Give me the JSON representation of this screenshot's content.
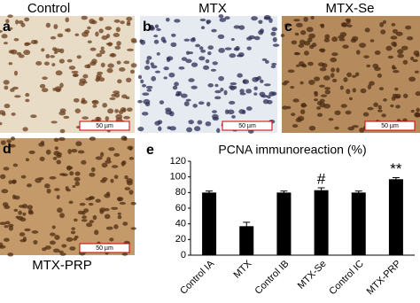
{
  "panels": [
    {
      "letter": "a",
      "title": "Control",
      "scale": "50 µm"
    },
    {
      "letter": "b",
      "title": "MTX",
      "scale": "50 µm"
    },
    {
      "letter": "c",
      "title": "MTX-Se",
      "scale": "50 µm"
    },
    {
      "letter": "d",
      "title": "MTX-PRP",
      "scale": "50 µm"
    }
  ],
  "chart_letter": "e",
  "chart_data": {
    "type": "bar",
    "title": "PCNA immunoreaction (%)",
    "categories": [
      "Control IA",
      "MTX",
      "Control IB",
      "MTX-Se",
      "Control IC",
      "MTX-PRP"
    ],
    "values": [
      80,
      37,
      80,
      83,
      80,
      97
    ],
    "errors": [
      2,
      5,
      2,
      3,
      2,
      2
    ],
    "annotations": [
      null,
      null,
      null,
      "#",
      null,
      "**"
    ],
    "color": "#000000",
    "ylim": [
      0,
      120
    ],
    "yticks": [
      0,
      20,
      40,
      60,
      80,
      100,
      120
    ],
    "grid": false
  }
}
